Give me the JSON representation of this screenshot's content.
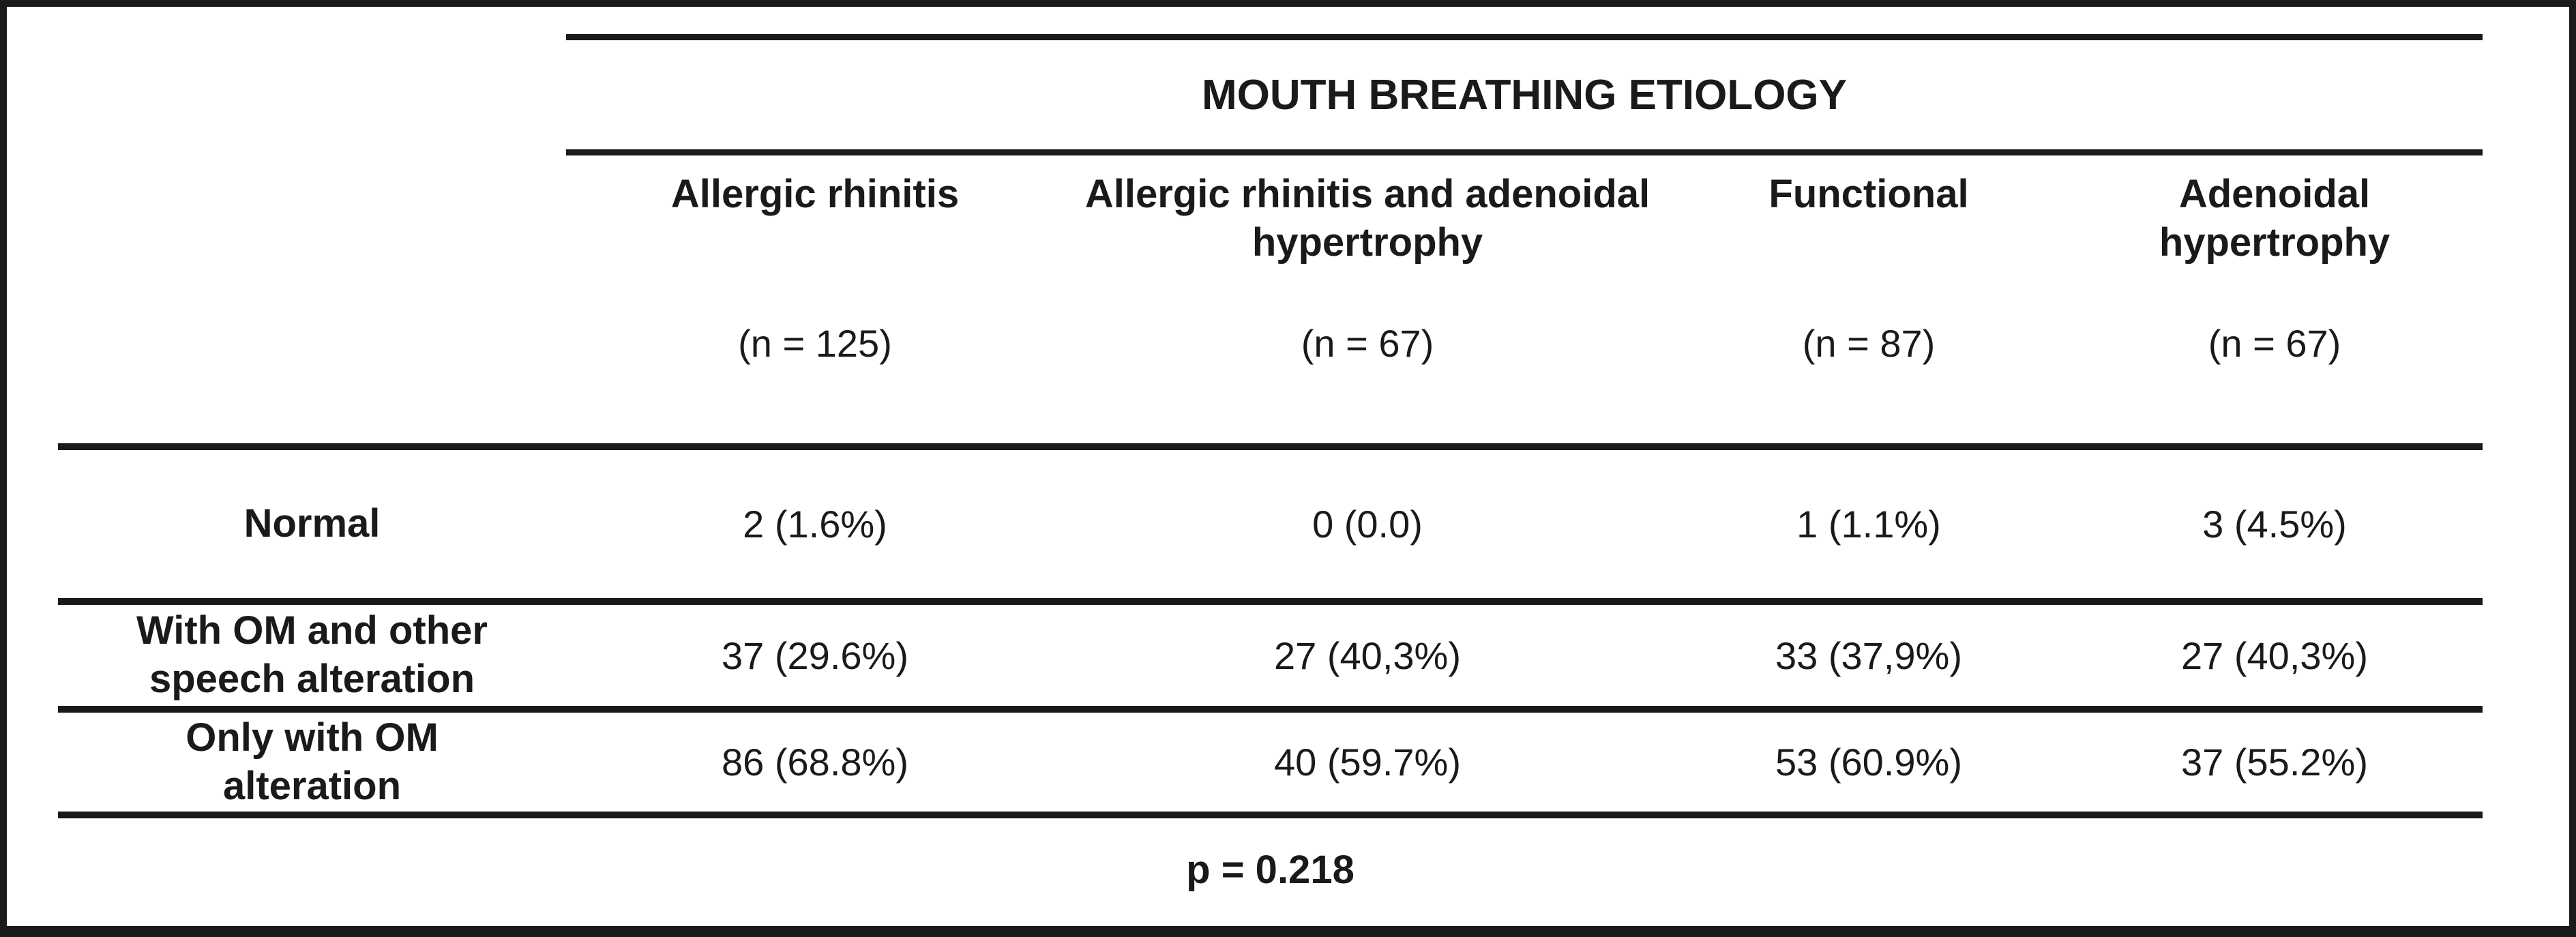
{
  "table": {
    "spanner_title": "MOUTH BREATHING ETIOLOGY",
    "columns": [
      {
        "label": "Allergic rhinitis",
        "n": "(n = 125)"
      },
      {
        "label": "Allergic rhinitis and adenoidal hypertrophy",
        "n": "(n = 67)"
      },
      {
        "label": "Functional",
        "n": "(n = 87)"
      },
      {
        "label": "Adenoidal hypertrophy",
        "n": "(n = 67)"
      }
    ],
    "rows": [
      {
        "label": "Normal",
        "values": [
          "2 (1.6%)",
          "0 (0.0)",
          "1 (1.1%)",
          "3 (4.5%)"
        ]
      },
      {
        "label": "With OM and other speech alteration",
        "values": [
          "37 (29.6%)",
          "27 (40,3%)",
          "33 (37,9%)",
          "27 (40,3%)"
        ]
      },
      {
        "label": "Only with OM alteration",
        "values": [
          "86 (68.8%)",
          "40 (59.7%)",
          "53 (60.9%)",
          "37 (55.2%)"
        ]
      }
    ],
    "footer_p_value": "p = 0.218"
  },
  "colors": {
    "text": "#1a1a1a",
    "background": "#ffffff",
    "rule": "#1a1a1a"
  }
}
